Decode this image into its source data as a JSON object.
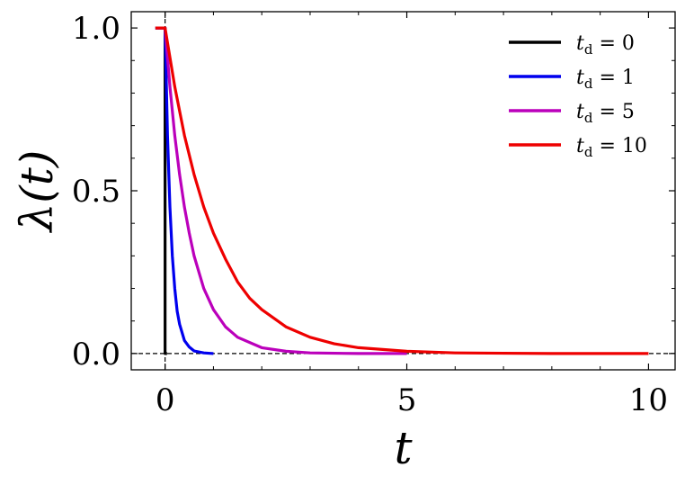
{
  "chart_data": {
    "type": "line",
    "title": "",
    "xlabel": "t",
    "ylabel": "λ(t)",
    "xlim": [
      -0.7,
      10.55
    ],
    "ylim": [
      -0.05,
      1.05
    ],
    "x_ticks": [
      {
        "value": 0,
        "label": "0"
      },
      {
        "value": 5,
        "label": "5"
      },
      {
        "value": 10,
        "label": "10"
      }
    ],
    "y_ticks": [
      {
        "value": 0.0,
        "label": "0.0"
      },
      {
        "value": 0.5,
        "label": "0.5"
      },
      {
        "value": 1.0,
        "label": "1.0"
      }
    ],
    "reference_lines": {
      "vertical_x": 0,
      "horizontal_y": 0,
      "style": "dashed"
    },
    "legend_position": "top-right",
    "grid": false,
    "series": [
      {
        "name": "t_d = 0",
        "legend_symbol": "t",
        "legend_sub": "d",
        "legend_value": "0",
        "color": "#000000",
        "points": [
          [
            -0.2,
            1.0
          ],
          [
            0.0,
            1.0
          ],
          [
            0.0,
            0.0
          ],
          [
            0.04,
            0.0
          ]
        ]
      },
      {
        "name": "t_d = 1",
        "legend_symbol": "t",
        "legend_sub": "d",
        "legend_value": "1",
        "color": "#0000ee",
        "points": [
          [
            -0.2,
            1.0
          ],
          [
            0.0,
            1.0
          ],
          [
            0.05,
            0.67
          ],
          [
            0.1,
            0.45
          ],
          [
            0.15,
            0.3
          ],
          [
            0.2,
            0.2
          ],
          [
            0.25,
            0.13
          ],
          [
            0.3,
            0.09
          ],
          [
            0.4,
            0.04
          ],
          [
            0.5,
            0.02
          ],
          [
            0.6,
            0.008
          ],
          [
            0.8,
            0.002
          ],
          [
            1.0,
            0.0
          ]
        ]
      },
      {
        "name": "t_d = 5",
        "legend_symbol": "t",
        "legend_sub": "d",
        "legend_value": "5",
        "color": "#bb00bb",
        "points": [
          [
            -0.2,
            1.0
          ],
          [
            0.0,
            1.0
          ],
          [
            0.1,
            0.82
          ],
          [
            0.2,
            0.67
          ],
          [
            0.3,
            0.55
          ],
          [
            0.4,
            0.45
          ],
          [
            0.5,
            0.37
          ],
          [
            0.6,
            0.3
          ],
          [
            0.8,
            0.2
          ],
          [
            1.0,
            0.135
          ],
          [
            1.25,
            0.082
          ],
          [
            1.5,
            0.05
          ],
          [
            2.0,
            0.018
          ],
          [
            2.5,
            0.007
          ],
          [
            3.0,
            0.002
          ],
          [
            4.0,
            0.0
          ],
          [
            5.0,
            0.0
          ]
        ]
      },
      {
        "name": "t_d = 10",
        "legend_symbol": "t",
        "legend_sub": "d",
        "legend_value": "10",
        "color": "#ee0000",
        "points": [
          [
            -0.2,
            1.0
          ],
          [
            0.0,
            1.0
          ],
          [
            0.2,
            0.82
          ],
          [
            0.4,
            0.67
          ],
          [
            0.6,
            0.55
          ],
          [
            0.8,
            0.45
          ],
          [
            1.0,
            0.37
          ],
          [
            1.25,
            0.29
          ],
          [
            1.5,
            0.22
          ],
          [
            1.75,
            0.17
          ],
          [
            2.0,
            0.135
          ],
          [
            2.5,
            0.082
          ],
          [
            3.0,
            0.05
          ],
          [
            3.5,
            0.03
          ],
          [
            4.0,
            0.018
          ],
          [
            5.0,
            0.007
          ],
          [
            6.0,
            0.002
          ],
          [
            7.0,
            0.001
          ],
          [
            8.0,
            0.0
          ],
          [
            10.0,
            0.0
          ]
        ]
      }
    ]
  }
}
